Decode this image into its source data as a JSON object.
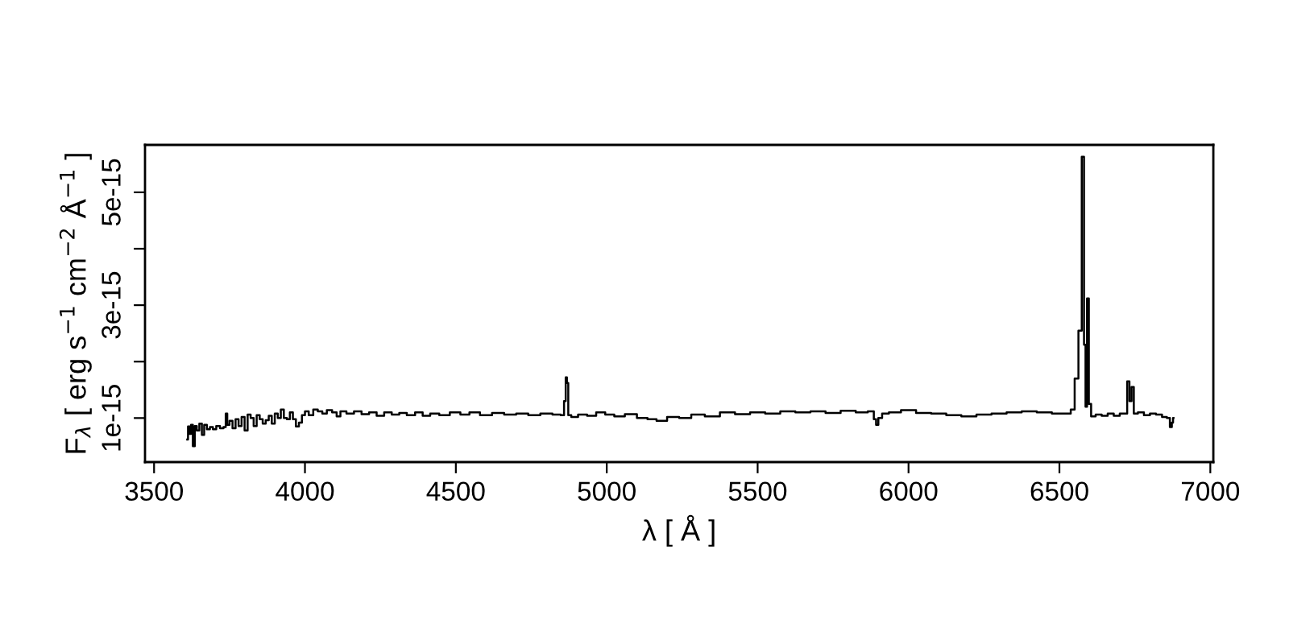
{
  "chart_data": {
    "type": "line",
    "xlabel": "λ [ Å ]",
    "ylabel": "F$_{λ}$ [ erg s$^{−1}$ cm$^{−2}$ Å$^{−1}$ ]",
    "x": [
      3610,
      3615,
      3620,
      3625,
      3632,
      3638,
      3645,
      3655,
      3662,
      3670,
      3680,
      3690,
      3700,
      3712,
      3725,
      3735,
      3740,
      3745,
      3755,
      3765,
      3775,
      3785,
      3795,
      3805,
      3815,
      3825,
      3835,
      3845,
      3855,
      3865,
      3875,
      3885,
      3895,
      3905,
      3915,
      3925,
      3935,
      3945,
      3955,
      3965,
      3975,
      3985,
      3995,
      4005,
      4020,
      4035,
      4050,
      4065,
      4080,
      4100,
      4110,
      4125,
      4150,
      4175,
      4200,
      4225,
      4250,
      4275,
      4300,
      4325,
      4350,
      4380,
      4400,
      4430,
      4460,
      4500,
      4530,
      4560,
      4600,
      4640,
      4680,
      4720,
      4760,
      4800,
      4840,
      4855,
      4862,
      4866,
      4870,
      4875,
      4890,
      4920,
      4950,
      4980,
      5010,
      5040,
      5080,
      5120,
      5150,
      5180,
      5220,
      5260,
      5300,
      5350,
      5400,
      5450,
      5500,
      5550,
      5600,
      5650,
      5700,
      5750,
      5800,
      5850,
      5880,
      5890,
      5895,
      5905,
      5920,
      5950,
      6000,
      6050,
      6100,
      6150,
      6200,
      6250,
      6300,
      6350,
      6400,
      6450,
      6500,
      6530,
      6545,
      6556,
      6570,
      6578,
      6585,
      6588,
      6595,
      6600,
      6610,
      6630,
      6650,
      6670,
      6690,
      6710,
      6720,
      6729,
      6735,
      6743,
      6750,
      6770,
      6790,
      6810,
      6830,
      6850,
      6862,
      6870,
      6875,
      6878
    ],
    "values": [
      6.2e-16,
      8.5e-16,
      7.2e-16,
      8.8e-16,
      5e-16,
      8.6e-16,
      7.8e-16,
      9e-16,
      7e-16,
      8.8e-16,
      8e-16,
      8.4e-16,
      8e-16,
      8.6e-16,
      8.2e-16,
      8.4e-16,
      1.08e-15,
      8.8e-16,
      9.5e-16,
      8.2e-16,
      9.8e-16,
      8.6e-16,
      1.02e-15,
      7.8e-16,
      1.06e-15,
      1e-15,
      8.6e-16,
      1.05e-15,
      9.8e-16,
      9e-16,
      9.6e-16,
      1.04e-15,
      9e-16,
      1.08e-15,
      1e-15,
      1.15e-15,
      1e-15,
      9.8e-16,
      1.1e-15,
      9.8e-16,
      8.5e-16,
      9.2e-16,
      1.05e-15,
      1.12e-15,
      1.05e-15,
      1.15e-15,
      1.12e-15,
      1.08e-15,
      1.14e-15,
      1.1e-15,
      1.03e-15,
      1.12e-15,
      1.08e-15,
      1.12e-15,
      1.07e-15,
      1.1e-15,
      1.04e-15,
      1.1e-15,
      1.06e-15,
      1.09e-15,
      1.05e-15,
      1.1e-15,
      1.04e-15,
      1.08e-15,
      1.05e-15,
      1.1e-15,
      1.06e-15,
      1.1e-15,
      1.05e-15,
      1.09e-15,
      1.06e-15,
      1.08e-15,
      1.05e-15,
      1.08e-15,
      1.06e-15,
      1.05e-15,
      1.3e-15,
      1.72e-15,
      1.62e-15,
      1.05e-15,
      1.02e-15,
      1.06e-15,
      1.04e-15,
      1.1e-15,
      1.06e-15,
      1.03e-15,
      1.07e-15,
      1e-15,
      9.8e-16,
      9.5e-16,
      1.02e-15,
      1e-15,
      1.06e-15,
      1.03e-15,
      1.1e-15,
      1.07e-15,
      1.1e-15,
      1.08e-15,
      1.12e-15,
      1.1e-15,
      1.12e-15,
      1.09e-15,
      1.13e-15,
      1.1e-15,
      1.12e-15,
      9.8e-16,
      8.8e-16,
      1e-15,
      1.08e-15,
      1.1e-15,
      1.14e-15,
      1.09e-15,
      1.08e-15,
      1.05e-15,
      1.03e-15,
      1.06e-15,
      1.08e-15,
      1.1e-15,
      1.12e-15,
      1.1e-15,
      1.08e-15,
      1.08e-15,
      1.15e-15,
      1.7e-15,
      2.55e-15,
      5.63e-15,
      2.3e-15,
      1.2e-15,
      3.12e-15,
      1.25e-15,
      1.03e-15,
      1.06e-15,
      1.04e-15,
      1.08e-15,
      1.04e-15,
      1.08e-15,
      1.08e-15,
      1.65e-15,
      1.3e-15,
      1.55e-15,
      1.08e-15,
      1.1e-15,
      1.05e-15,
      1.08e-15,
      1.06e-15,
      1.02e-15,
      1e-15,
      8.4e-16,
      9.2e-16,
      1e-15
    ],
    "color": "#000000",
    "xlim": [
      3470,
      7010
    ],
    "xticks": [
      3500,
      4000,
      4500,
      5000,
      5500,
      6000,
      6500,
      7000
    ],
    "ylim": [
      2.2e-16,
      5.84e-15
    ],
    "yticks": [
      {
        "value": 1e-15,
        "label": "1e-15"
      },
      {
        "value": 2e-15,
        "label": null
      },
      {
        "value": 3e-15,
        "label": "3e-15"
      },
      {
        "value": 4e-15,
        "label": null
      },
      {
        "value": 5e-15,
        "label": "5e-15"
      }
    ],
    "grid": false,
    "legend": false
  }
}
